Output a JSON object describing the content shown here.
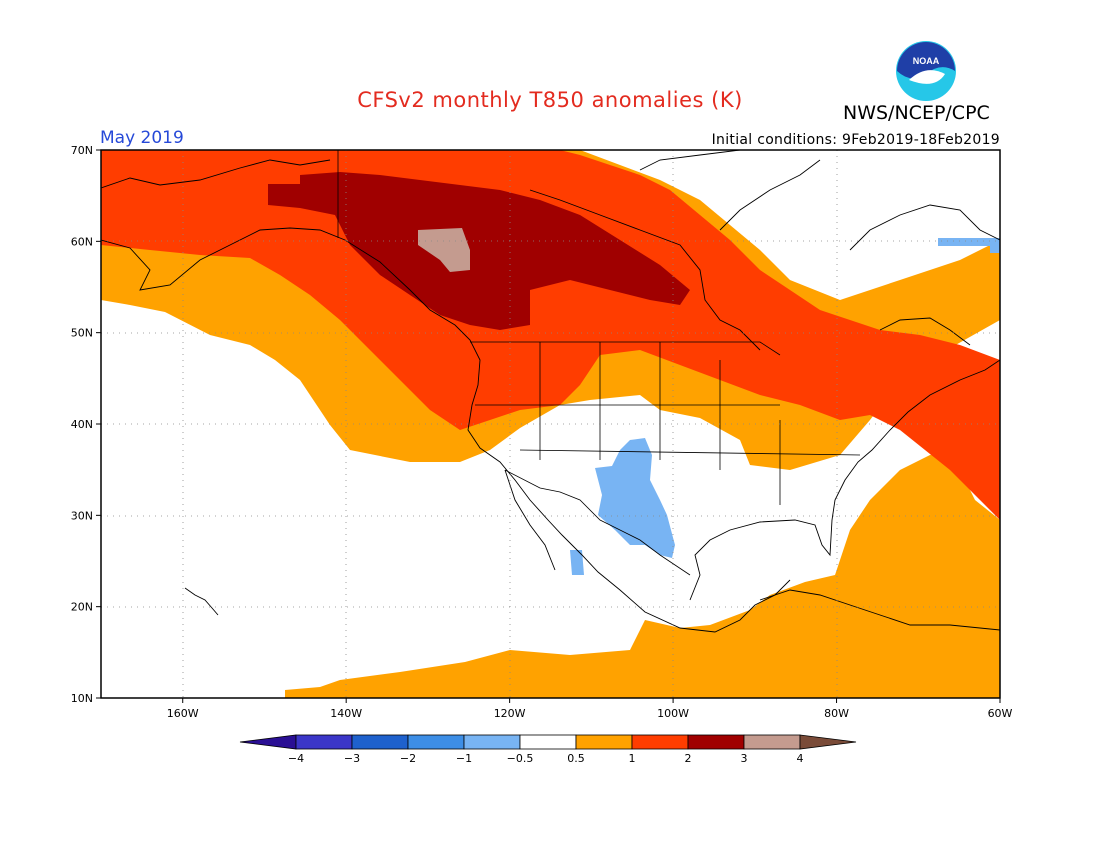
{
  "header": {
    "title": "CFSv2 monthly T850 anomalies (K)",
    "organization": "NWS/NCEP/CPC",
    "valid_month": "May 2019",
    "initial_conditions": "Initial conditions: 9Feb2019-18Feb2019",
    "logo_text": "NOAA"
  },
  "map": {
    "lon_range": [
      -170,
      -60
    ],
    "lat_range": [
      10,
      70
    ],
    "lat_labels": [
      "70N",
      "60N",
      "50N",
      "40N",
      "30N",
      "20N",
      "10N"
    ],
    "lon_labels": [
      "160W",
      "140W",
      "120W",
      "100W",
      "80W",
      "60W"
    ],
    "grid": "dotted",
    "regions": [
      {
        "category": "0.5 to 1",
        "description": "warm band over Pacific Northwest, Gulf of Alaska, tropical Pacific and western Atlantic"
      },
      {
        "category": "1 to 2",
        "description": "Alaska, western and northern Canada, northern US, Great Lakes, Northeast US, Atlantic"
      },
      {
        "category": "2 to 3",
        "description": "Yukon, Northwest Territories, northern British Columbia and Alberta"
      },
      {
        "category": "3 to 4",
        "description": "small area in northern British Columbia"
      },
      {
        "category": "-1 to -0.5",
        "description": "New Mexico, west Texas, northern Mexico, southern Baja California, southern Baffin Island"
      }
    ]
  },
  "colorbar": {
    "labels": [
      "-4",
      "-3",
      "-2",
      "-1",
      "-0.5",
      "0.5",
      "1",
      "2",
      "3",
      "4"
    ],
    "colors": [
      "#2a0f94",
      "#3b36c8",
      "#1e61cd",
      "#3d8ee6",
      "#78b4f3",
      "#ffffff",
      "#ffa200",
      "#ff3d00",
      "#a00000",
      "#c49b8f",
      "#7a4b38"
    ]
  },
  "colors": {
    "title": "#e32b1f",
    "month": "#2649d8",
    "noaa_blue": "#1f3fa7",
    "noaa_cyan": "#26c7e8"
  }
}
